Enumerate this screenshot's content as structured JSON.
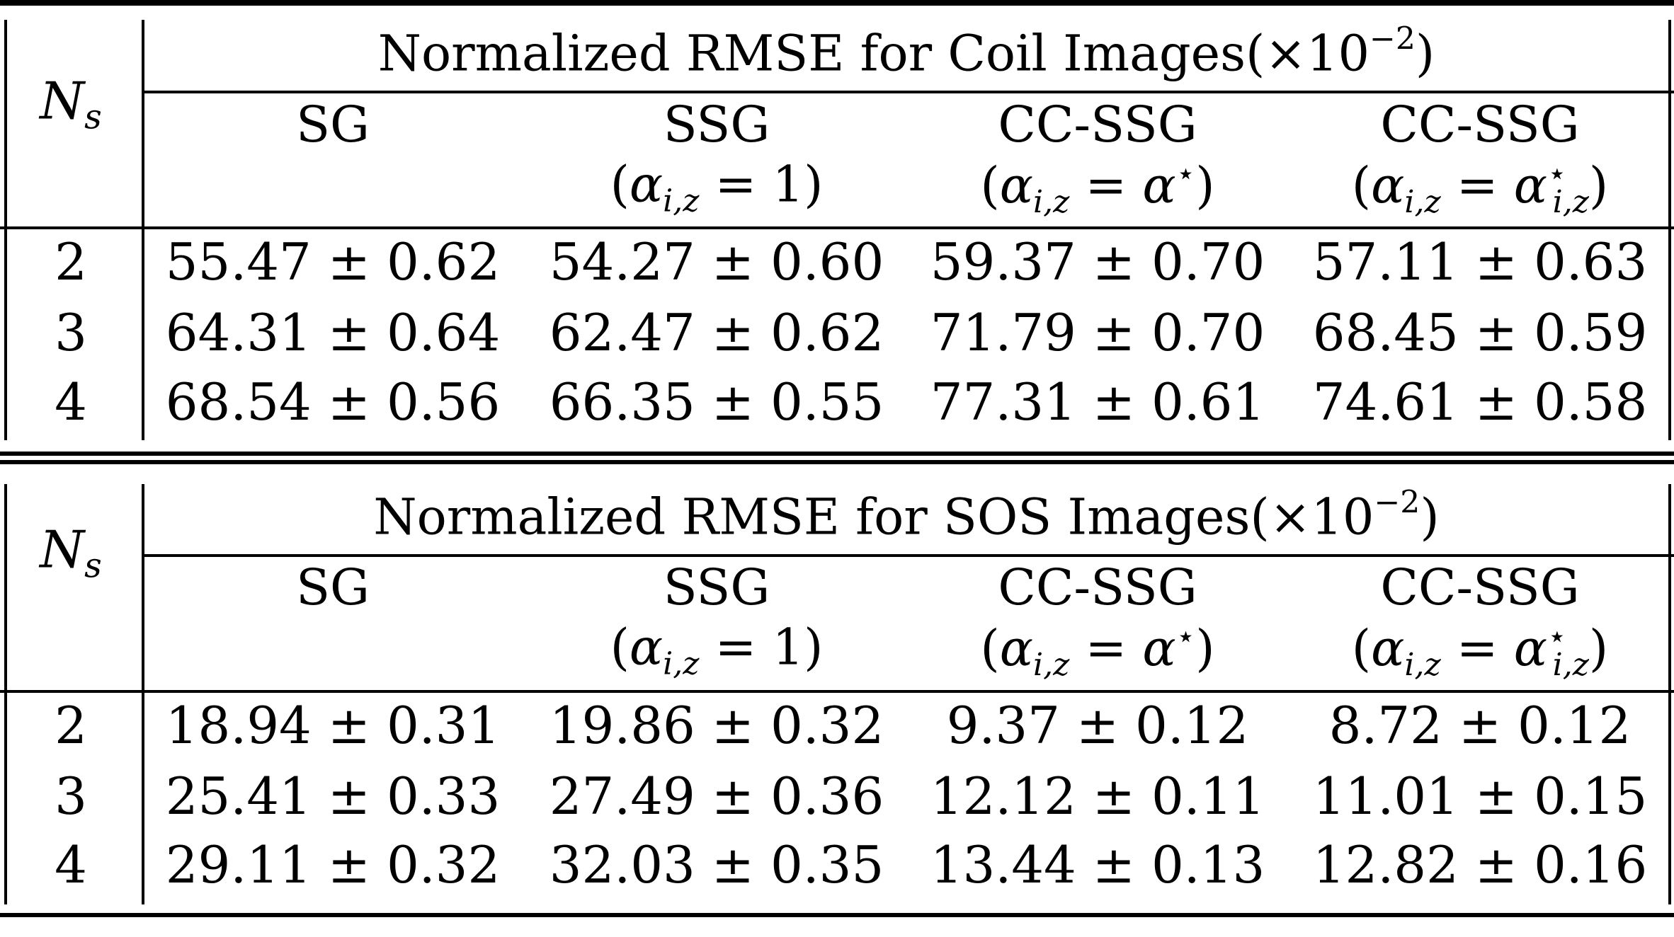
{
  "table": {
    "blocks": [
      {
        "title": "Normalized RMSE for Coil Images(×10",
        "title_exp": "−2",
        "title_close": ")",
        "row_header": "N",
        "row_header_sub": "s",
        "columns": [
          {
            "name": "SG",
            "sub": ""
          },
          {
            "name": "SSG",
            "sub": "(α i,z = 1)"
          },
          {
            "name": "CC-SSG",
            "sub": "(α i,z = α⋆)"
          },
          {
            "name": "CC-SSG",
            "sub": "(α i,z = α⋆ i,z)"
          }
        ],
        "rows": [
          {
            "ns": "2",
            "cells": [
              "55.47 ± 0.62",
              "54.27 ± 0.60",
              "59.37 ± 0.70",
              "57.11 ± 0.63"
            ]
          },
          {
            "ns": "3",
            "cells": [
              "64.31 ± 0.64",
              "62.47 ± 0.62",
              "71.79 ± 0.70",
              "68.45 ± 0.59"
            ]
          },
          {
            "ns": "4",
            "cells": [
              "68.54 ± 0.56",
              "66.35 ± 0.55",
              "77.31 ± 0.61",
              "74.61 ± 0.58"
            ]
          }
        ]
      },
      {
        "title": "Normalized RMSE for SOS Images(×10",
        "title_exp": "−2",
        "title_close": ")",
        "row_header": "N",
        "row_header_sub": "s",
        "columns": [
          {
            "name": "SG",
            "sub": ""
          },
          {
            "name": "SSG",
            "sub": "(α i,z = 1)"
          },
          {
            "name": "CC-SSG",
            "sub": "(α i,z = α⋆)"
          },
          {
            "name": "CC-SSG",
            "sub": "(α i,z = α⋆ i,z)"
          }
        ],
        "rows": [
          {
            "ns": "2",
            "cells": [
              "18.94 ± 0.31",
              "19.86 ± 0.32",
              "9.37 ± 0.12",
              "8.72 ± 0.12"
            ]
          },
          {
            "ns": "3",
            "cells": [
              "25.41 ± 0.33",
              "27.49 ± 0.36",
              "12.12 ± 0.11",
              "11.01 ± 0.15"
            ]
          },
          {
            "ns": "4",
            "cells": [
              "29.11 ± 0.32",
              "32.03 ± 0.35",
              "13.44 ± 0.13",
              "12.82 ± 0.16"
            ]
          }
        ]
      }
    ]
  }
}
